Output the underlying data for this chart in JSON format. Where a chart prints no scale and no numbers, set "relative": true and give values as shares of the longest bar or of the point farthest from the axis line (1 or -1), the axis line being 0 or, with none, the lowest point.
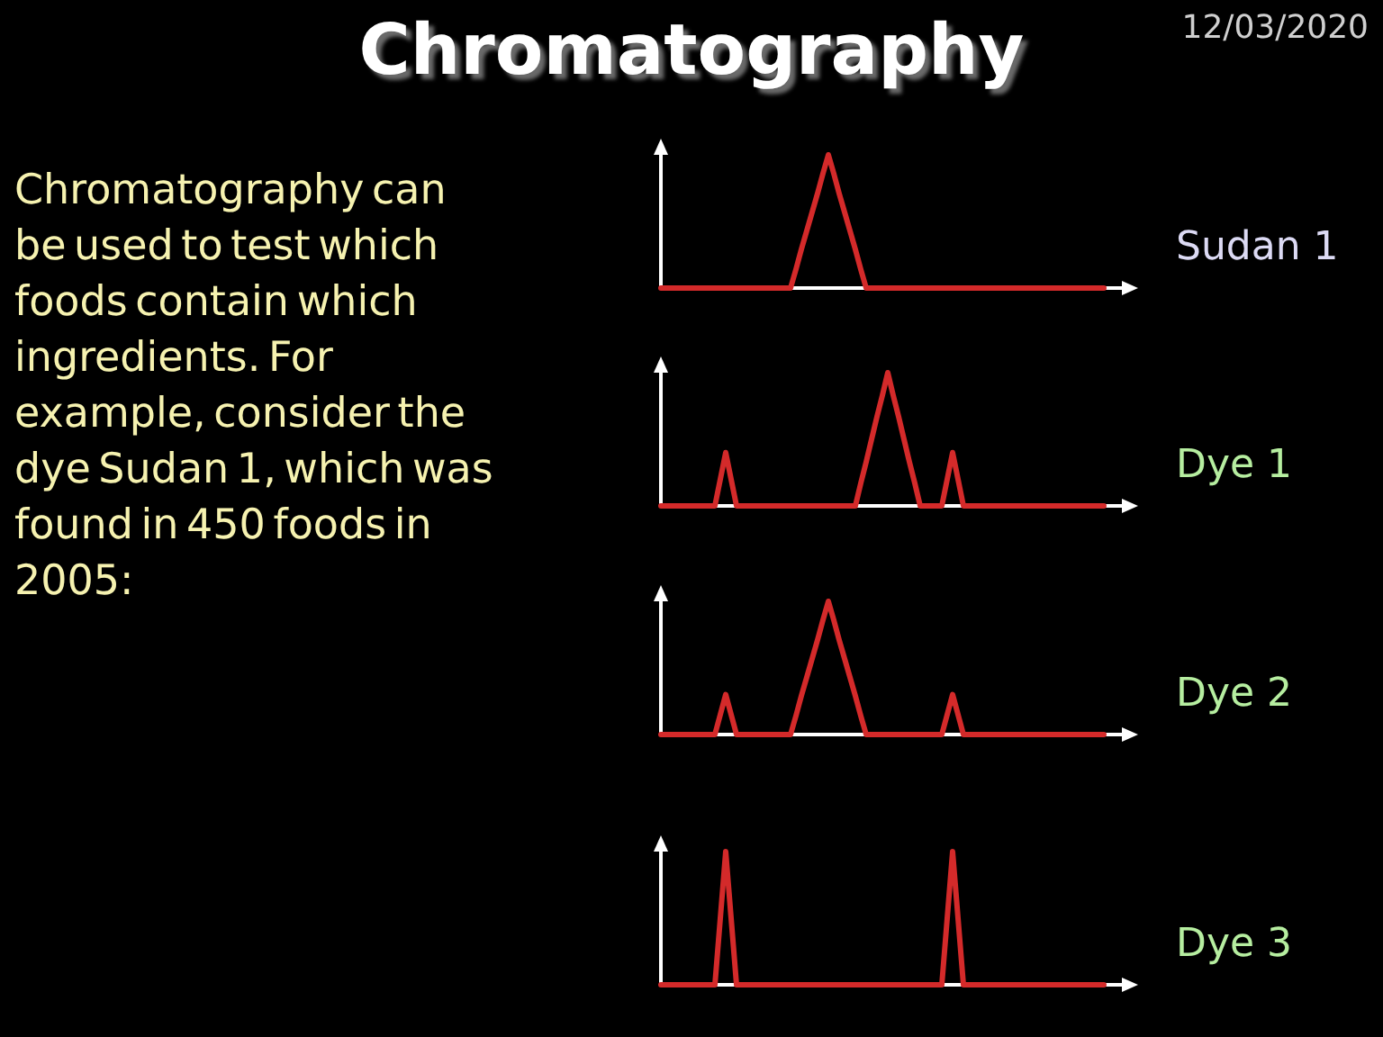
{
  "chart_data": [
    {
      "type": "other",
      "title": "Chromatography",
      "annotations": [
        "12/03/2020",
        "Chromatography can be used to test which foods contain which ingredients. For example, consider the dye Sudan 1, which was found in 450 foods in 2005:"
      ]
    },
    {
      "type": "line",
      "relative": true,
      "line_style": "solid",
      "categories": [
        null,
        null,
        null,
        null,
        null,
        null,
        null,
        null,
        null,
        null,
        null,
        null,
        null,
        null,
        null,
        null,
        null,
        null,
        null,
        null,
        null,
        null,
        null,
        null,
        null,
        null,
        null,
        null,
        null,
        null,
        null,
        null,
        null,
        null,
        null,
        null,
        null,
        null,
        null,
        null,
        null,
        null,
        null,
        null,
        null,
        null,
        null,
        null,
        null,
        null,
        null,
        null,
        null,
        null,
        null,
        null,
        null,
        null,
        null,
        null,
        null,
        null,
        null,
        null,
        null,
        null,
        null,
        null,
        null,
        null,
        null,
        null,
        null,
        null,
        null,
        null,
        null,
        null,
        null,
        null,
        null,
        null,
        null
      ],
      "series": [
        {
          "name": "Sudan 1",
          "color": "#d42a2a",
          "values": [
            0,
            0,
            0,
            0,
            0,
            0,
            0,
            0,
            0,
            0,
            0,
            0,
            0,
            0,
            0,
            0,
            0,
            0,
            0,
            0,
            0,
            0,
            0,
            0,
            0,
            0.14,
            0.29,
            0.43,
            0.57,
            0.71,
            0.86,
            1,
            0.86,
            0.71,
            0.57,
            0.43,
            0.29,
            0.14,
            0,
            0,
            0,
            0,
            0,
            0,
            0,
            0,
            0,
            0,
            0,
            0,
            0,
            0,
            0,
            0,
            0,
            0,
            0,
            0,
            0,
            0,
            0,
            0,
            0,
            0,
            0,
            0,
            0,
            0,
            0,
            0,
            0,
            0,
            0,
            0,
            0,
            0,
            0,
            0,
            0,
            0,
            0,
            0,
            0
          ]
        }
      ]
    },
    {
      "type": "line",
      "relative": true,
      "line_style": "solid",
      "categories": [
        null,
        null,
        null,
        null,
        null,
        null,
        null,
        null,
        null,
        null,
        null,
        null,
        null,
        null,
        null,
        null,
        null,
        null,
        null,
        null,
        null,
        null,
        null,
        null,
        null,
        null,
        null,
        null,
        null,
        null,
        null,
        null,
        null,
        null,
        null,
        null,
        null,
        null,
        null,
        null,
        null,
        null,
        null,
        null,
        null,
        null,
        null,
        null,
        null,
        null,
        null,
        null,
        null,
        null,
        null,
        null,
        null,
        null,
        null,
        null,
        null,
        null,
        null,
        null,
        null,
        null,
        null,
        null,
        null,
        null,
        null,
        null,
        null,
        null,
        null,
        null,
        null,
        null,
        null,
        null,
        null,
        null,
        null
      ],
      "series": [
        {
          "name": "Dye 1",
          "color": "#d42a2a",
          "values": [
            0,
            0,
            0,
            0,
            0,
            0,
            0,
            0,
            0,
            0,
            0,
            0.2,
            0.4,
            0.2,
            0,
            0,
            0,
            0,
            0,
            0,
            0,
            0,
            0,
            0,
            0,
            0,
            0,
            0,
            0,
            0,
            0,
            0,
            0,
            0,
            0,
            0,
            0,
            0.17,
            0.33,
            0.5,
            0.67,
            0.83,
            1,
            0.83,
            0.67,
            0.5,
            0.33,
            0.17,
            0,
            0,
            0,
            0,
            0,
            0.2,
            0.4,
            0.2,
            0,
            0,
            0,
            0,
            0,
            0,
            0,
            0,
            0,
            0,
            0,
            0,
            0,
            0,
            0,
            0,
            0,
            0,
            0,
            0,
            0,
            0,
            0,
            0,
            0,
            0,
            0
          ]
        }
      ]
    },
    {
      "type": "line",
      "relative": true,
      "line_style": "solid",
      "categories": [
        null,
        null,
        null,
        null,
        null,
        null,
        null,
        null,
        null,
        null,
        null,
        null,
        null,
        null,
        null,
        null,
        null,
        null,
        null,
        null,
        null,
        null,
        null,
        null,
        null,
        null,
        null,
        null,
        null,
        null,
        null,
        null,
        null,
        null,
        null,
        null,
        null,
        null,
        null,
        null,
        null,
        null,
        null,
        null,
        null,
        null,
        null,
        null,
        null,
        null,
        null,
        null,
        null,
        null,
        null,
        null,
        null,
        null,
        null,
        null,
        null,
        null,
        null,
        null,
        null,
        null,
        null,
        null,
        null,
        null,
        null,
        null,
        null,
        null,
        null,
        null,
        null,
        null,
        null,
        null,
        null,
        null,
        null
      ],
      "series": [
        {
          "name": "Dye 2",
          "color": "#d42a2a",
          "values": [
            0,
            0,
            0,
            0,
            0,
            0,
            0,
            0,
            0,
            0,
            0,
            0.15,
            0.3,
            0.15,
            0,
            0,
            0,
            0,
            0,
            0,
            0,
            0,
            0,
            0,
            0,
            0.14,
            0.29,
            0.43,
            0.57,
            0.71,
            0.86,
            1,
            0.86,
            0.71,
            0.57,
            0.43,
            0.29,
            0.14,
            0,
            0,
            0,
            0,
            0,
            0,
            0,
            0,
            0,
            0,
            0,
            0,
            0,
            0,
            0,
            0.15,
            0.3,
            0.15,
            0,
            0,
            0,
            0,
            0,
            0,
            0,
            0,
            0,
            0,
            0,
            0,
            0,
            0,
            0,
            0,
            0,
            0,
            0,
            0,
            0,
            0,
            0,
            0,
            0,
            0,
            0
          ]
        }
      ]
    },
    {
      "type": "line",
      "relative": true,
      "line_style": "solid",
      "categories": [
        null,
        null,
        null,
        null,
        null,
        null,
        null,
        null,
        null,
        null,
        null,
        null,
        null,
        null,
        null,
        null,
        null,
        null,
        null,
        null,
        null,
        null,
        null,
        null,
        null,
        null,
        null,
        null,
        null,
        null,
        null,
        null,
        null,
        null,
        null,
        null,
        null,
        null,
        null,
        null,
        null,
        null,
        null,
        null,
        null,
        null,
        null,
        null,
        null,
        null,
        null,
        null,
        null,
        null,
        null,
        null,
        null,
        null,
        null,
        null,
        null,
        null,
        null,
        null,
        null,
        null,
        null,
        null,
        null,
        null,
        null,
        null,
        null,
        null,
        null,
        null,
        null,
        null,
        null,
        null,
        null,
        null,
        null
      ],
      "series": [
        {
          "name": "Dye 3",
          "color": "#d42a2a",
          "values": [
            0,
            0,
            0,
            0,
            0,
            0,
            0,
            0,
            0,
            0,
            0,
            0.5,
            1,
            0.5,
            0,
            0,
            0,
            0,
            0,
            0,
            0,
            0,
            0,
            0,
            0,
            0,
            0,
            0,
            0,
            0,
            0,
            0,
            0,
            0,
            0,
            0,
            0,
            0,
            0,
            0,
            0,
            0,
            0,
            0,
            0,
            0,
            0,
            0,
            0,
            0,
            0,
            0,
            0,
            0.5,
            1,
            0.5,
            0,
            0,
            0,
            0,
            0,
            0,
            0,
            0,
            0,
            0,
            0,
            0,
            0,
            0,
            0,
            0,
            0,
            0,
            0,
            0,
            0,
            0,
            0,
            0,
            0,
            0,
            0
          ]
        }
      ]
    }
  ]
}
